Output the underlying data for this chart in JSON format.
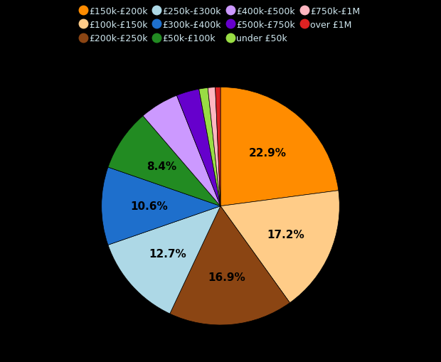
{
  "labels": [
    "£150k-£200k",
    "£100k-£150k",
    "£200k-£250k",
    "£250k-£300k",
    "£300k-£400k",
    "£50k-£100k",
    "£400k-£500k",
    "£500k-£750k",
    "under £50k",
    "£750k-£1M",
    "over £1M"
  ],
  "values": [
    22.9,
    17.2,
    16.9,
    12.7,
    10.6,
    8.4,
    5.3,
    3.1,
    1.2,
    1.0,
    0.7
  ],
  "colors": [
    "#ff8c00",
    "#ffcc88",
    "#8b4513",
    "#add8e6",
    "#1e6fcc",
    "#228b22",
    "#cc99ff",
    "#6600cc",
    "#99dd44",
    "#ffb6c1",
    "#dd2222"
  ],
  "background_color": "#000000",
  "text_color": "#d0e8f0",
  "label_color": "#000000",
  "startangle": 90,
  "figure_width": 6.2,
  "figure_height": 5.1,
  "dpi": 100,
  "labeled_pcts": {
    "0": "22.9%",
    "1": "17.2%",
    "2": "16.9%",
    "3": "12.7%",
    "4": "10.6%",
    "5": "8.4%"
  }
}
